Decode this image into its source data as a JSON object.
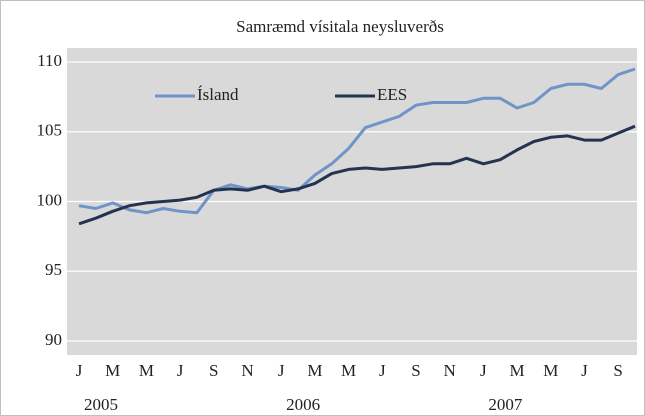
{
  "chart_data": {
    "type": "line",
    "title": "Samræmd vísitala neysluverðs",
    "categories": [
      "J",
      null,
      "M",
      null,
      "M",
      null,
      "J",
      null,
      "S",
      null,
      "N",
      null,
      "J",
      null,
      "M",
      null,
      "M",
      null,
      "J",
      null,
      "S",
      null,
      "N",
      null,
      "J",
      null,
      "M",
      null,
      "M",
      null,
      "J",
      null,
      "S",
      null
    ],
    "years": [
      "2005",
      "2006",
      "2007"
    ],
    "series": [
      {
        "name": "Ísland",
        "color": "#7094c8",
        "values": [
          99.7,
          99.5,
          99.9,
          99.4,
          99.2,
          99.5,
          99.3,
          99.2,
          100.8,
          101.2,
          100.9,
          101.1,
          101.0,
          100.8,
          101.9,
          102.7,
          103.8,
          105.3,
          105.7,
          106.1,
          106.9,
          107.1,
          107.1,
          107.1,
          107.4,
          107.4,
          106.7,
          107.1,
          108.1,
          108.4,
          108.4,
          108.1,
          109.1,
          109.5
        ]
      },
      {
        "name": "EES",
        "color": "#243350",
        "values": [
          98.4,
          98.8,
          99.3,
          99.7,
          99.9,
          100.0,
          100.1,
          100.3,
          100.8,
          100.9,
          100.8,
          101.1,
          100.7,
          100.9,
          101.3,
          102.0,
          102.3,
          102.4,
          102.3,
          102.4,
          102.5,
          102.7,
          102.7,
          103.1,
          102.7,
          103.0,
          103.7,
          104.3,
          104.6,
          104.7,
          104.4,
          104.4,
          104.9,
          105.4
        ]
      }
    ],
    "ylim": [
      90,
      110
    ],
    "yticks": [
      90,
      95,
      100,
      105,
      110
    ],
    "grid": true
  }
}
